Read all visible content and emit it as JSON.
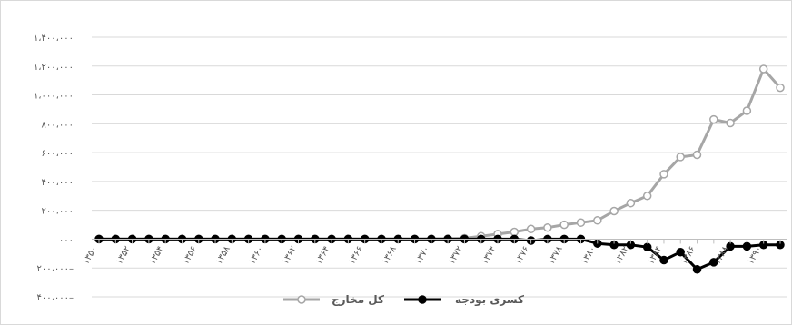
{
  "chart_data": {
    "type": "line",
    "title": "",
    "xlabel": "",
    "ylabel": "",
    "ylim": [
      -400000,
      1400000
    ],
    "y_ticks": [
      {
        "value": 1400000,
        "label": "۱،۴۰۰،۰۰۰"
      },
      {
        "value": 1200000,
        "label": "۱،۲۰۰،۰۰۰"
      },
      {
        "value": 1000000,
        "label": "۱،۰۰۰،۰۰۰"
      },
      {
        "value": 800000,
        "label": "۸۰۰،۰۰۰"
      },
      {
        "value": 600000,
        "label": "۶۰۰،۰۰۰"
      },
      {
        "value": 400000,
        "label": "۴۰۰،۰۰۰"
      },
      {
        "value": 200000,
        "label": "۲۰۰،۰۰۰"
      },
      {
        "value": 0,
        "label": "۰۰۰"
      },
      {
        "value": -200000,
        "label": "۲۰۰،۰۰۰–"
      },
      {
        "value": -400000,
        "label": "۴۰۰،۰۰۰–"
      }
    ],
    "x": [
      1350,
      1351,
      1352,
      1353,
      1354,
      1355,
      1356,
      1357,
      1358,
      1359,
      1360,
      1361,
      1362,
      1363,
      1364,
      1365,
      1366,
      1367,
      1368,
      1369,
      1370,
      1371,
      1372,
      1373,
      1374,
      1375,
      1376,
      1377,
      1378,
      1379,
      1380,
      1381,
      1382,
      1383,
      1384,
      1385,
      1386,
      1387,
      1388,
      1389,
      1390,
      1391
    ],
    "x_tick_labels": [
      {
        "x": 1350,
        "label": "۱۳۵۰"
      },
      {
        "x": 1352,
        "label": "۱۳۵۲"
      },
      {
        "x": 1354,
        "label": "۱۳۵۴"
      },
      {
        "x": 1356,
        "label": "۱۳۵۶"
      },
      {
        "x": 1358,
        "label": "۱۳۵۸"
      },
      {
        "x": 1360,
        "label": "۱۳۶۰"
      },
      {
        "x": 1362,
        "label": "۱۳۶۲"
      },
      {
        "x": 1364,
        "label": "۱۳۶۴"
      },
      {
        "x": 1366,
        "label": "۱۳۶۶"
      },
      {
        "x": 1368,
        "label": "۱۳۶۸"
      },
      {
        "x": 1370,
        "label": "۱۳۷۰"
      },
      {
        "x": 1372,
        "label": "۱۳۷۲"
      },
      {
        "x": 1374,
        "label": "۱۳۷۴"
      },
      {
        "x": 1376,
        "label": "۱۳۷۶"
      },
      {
        "x": 1378,
        "label": "۱۳۷۸"
      },
      {
        "x": 1380,
        "label": "۱۳۸۰"
      },
      {
        "x": 1382,
        "label": "۱۳۸۲"
      },
      {
        "x": 1384,
        "label": "۱۳۸۴"
      },
      {
        "x": 1386,
        "label": "۱۳۸۶"
      },
      {
        "x": 1388,
        "label": "۱۳۸۸"
      },
      {
        "x": 1390,
        "label": "۱۳۹۰"
      }
    ],
    "series": [
      {
        "name": "کل مخارج",
        "color": "#a6a6a6",
        "marker_fill": "#ffffff",
        "values": [
          1000,
          1000,
          1000,
          1000,
          1000,
          1000,
          1000,
          1000,
          1000,
          1000,
          1000,
          1000,
          1000,
          1000,
          1000,
          1000,
          1000,
          1000,
          1000,
          1000,
          2000,
          3000,
          6000,
          20000,
          35000,
          50000,
          70000,
          80000,
          100000,
          115000,
          130000,
          195000,
          250000,
          300000,
          450000,
          570000,
          585000,
          830000,
          805000,
          890000,
          1180000,
          1050000
        ]
      },
      {
        "name": "کسری بودجه",
        "color": "#000000",
        "marker_fill": "#000000",
        "values": [
          0,
          0,
          0,
          0,
          0,
          0,
          0,
          0,
          0,
          0,
          0,
          0,
          0,
          0,
          0,
          0,
          0,
          0,
          0,
          0,
          0,
          0,
          0,
          0,
          0,
          0,
          -10000,
          0,
          0,
          0,
          -30000,
          -40000,
          -40000,
          -55000,
          -145000,
          -90000,
          -210000,
          -160000,
          -50000,
          -50000,
          -40000,
          -40000
        ]
      }
    ],
    "grid": true,
    "legend": "bottom"
  }
}
